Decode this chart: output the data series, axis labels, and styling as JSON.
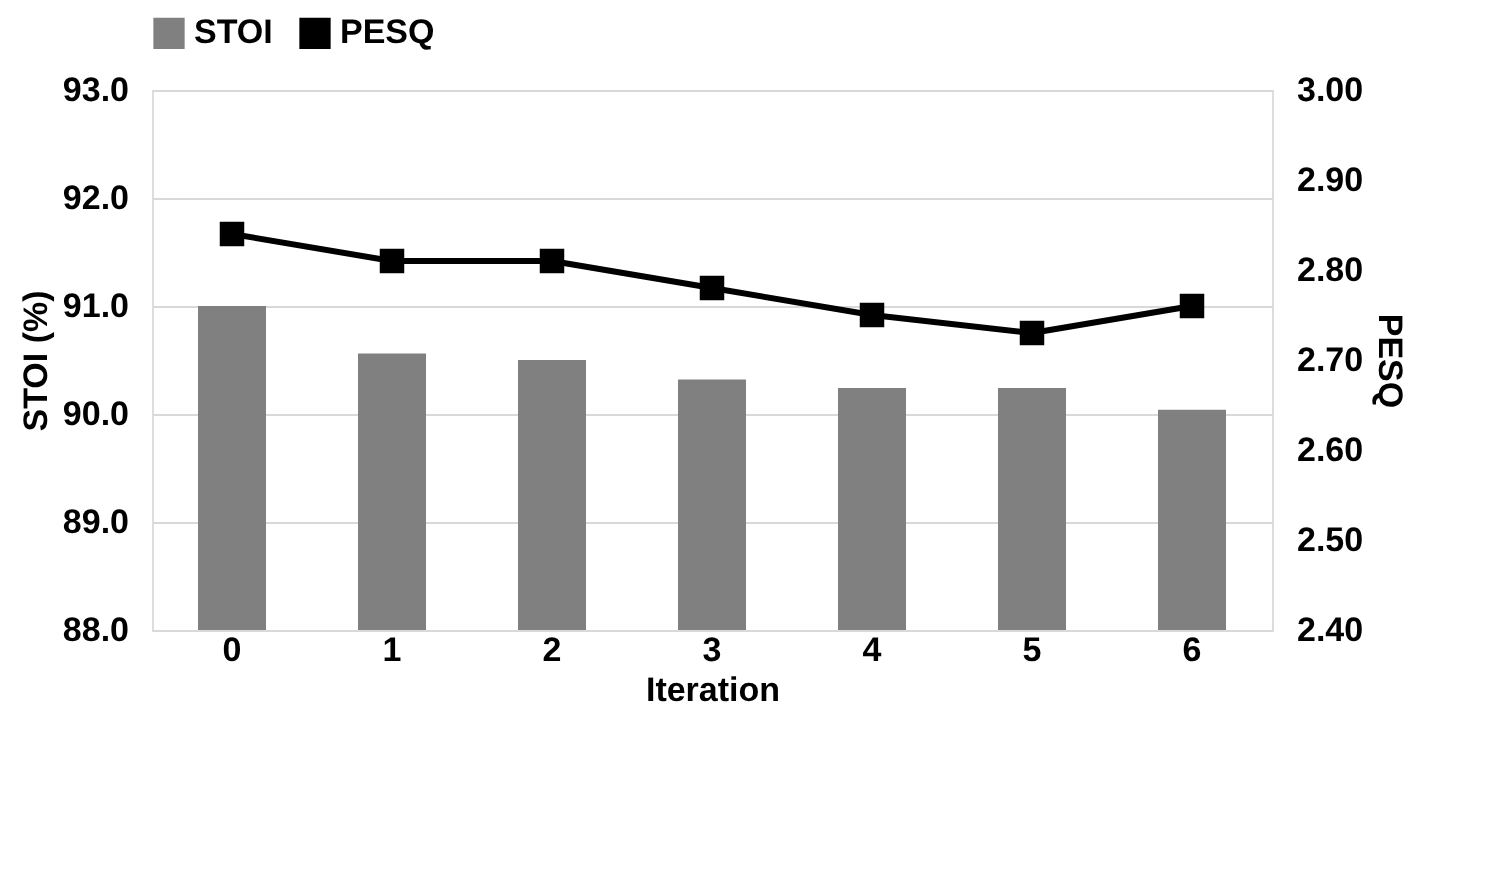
{
  "chart_data": {
    "type": "bar",
    "xlabel": "Iteration",
    "ylabel": "STOI (%)",
    "y2label": "PESQ",
    "categories": [
      "0",
      "1",
      "2",
      "3",
      "4",
      "5",
      "6"
    ],
    "series": [
      {
        "name": "STOI",
        "color": "#808080",
        "values": [
          91.0,
          90.56,
          90.5,
          90.32,
          90.24,
          90.24,
          90.04
        ]
      },
      {
        "name": "PESQ",
        "type": "line",
        "axis": "y2",
        "color": "#000000",
        "marker": "square",
        "values": [
          2.84,
          2.81,
          2.81,
          2.78,
          2.75,
          2.73,
          2.76
        ]
      }
    ],
    "ylim": [
      88,
      93
    ],
    "yticks": [
      {
        "value": 88,
        "label": "88.0"
      },
      {
        "value": 89,
        "label": "89.0"
      },
      {
        "value": 90,
        "label": "90.0"
      },
      {
        "value": 91,
        "label": "91.0"
      },
      {
        "value": 92,
        "label": "92.0"
      },
      {
        "value": 93,
        "label": "93.0"
      }
    ],
    "y2lim": [
      2.4,
      3.0
    ],
    "y2ticks": [
      {
        "value": 2.4,
        "label": "2.40"
      },
      {
        "value": 2.5,
        "label": "2.50"
      },
      {
        "value": 2.6,
        "label": "2.60"
      },
      {
        "value": 2.7,
        "label": "2.70"
      },
      {
        "value": 2.8,
        "label": "2.80"
      },
      {
        "value": 2.9,
        "label": "2.90"
      },
      {
        "value": 3.0,
        "label": "3.00"
      }
    ],
    "grid": "y",
    "legend": "top"
  }
}
